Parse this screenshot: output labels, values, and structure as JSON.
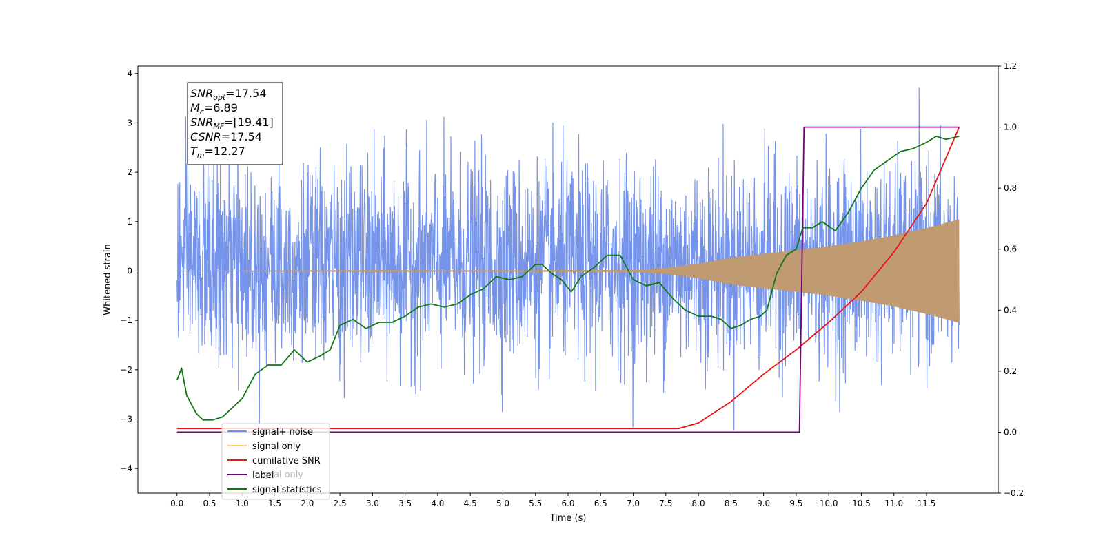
{
  "chart_data": {
    "type": "line",
    "title": "",
    "xlabel": "Time (s)",
    "ylabel": "Whitened strain",
    "ylabel_right": "",
    "xlim": [
      -0.6,
      12.6
    ],
    "ylim": [
      -4.5,
      4.15
    ],
    "ylim_right": [
      -0.2,
      1.2
    ],
    "x_ticks": [
      0.0,
      0.5,
      1.0,
      1.5,
      2.0,
      2.5,
      3.0,
      3.5,
      4.0,
      4.5,
      5.0,
      5.5,
      6.0,
      6.5,
      7.0,
      7.5,
      8.0,
      8.5,
      9.0,
      9.5,
      10.0,
      10.5,
      11.0,
      11.5
    ],
    "x_tick_labels": [
      "0.0",
      "0.5",
      "1.0",
      "1.5",
      "2.0",
      "2.5",
      "3.0",
      "3.5",
      "4.0",
      "4.5",
      "5.0",
      "5.5",
      "6.0",
      "6.5",
      "7.0",
      "7.5",
      "8.0",
      "8.5",
      "9.0",
      "9.5",
      "10.0",
      "10.5",
      "11.0",
      "11.5"
    ],
    "y_ticks": [
      -4,
      -3,
      -2,
      -1,
      0,
      1,
      2,
      3,
      4
    ],
    "y_tick_labels": [
      "−4",
      "−3",
      "−2",
      "−1",
      "0",
      "1",
      "2",
      "3",
      "4"
    ],
    "y_right_ticks": [
      -0.2,
      0.0,
      0.2,
      0.4,
      0.6,
      0.8,
      1.0,
      1.2
    ],
    "y_right_tick_labels": [
      "−0.2",
      "0.0",
      "0.2",
      "0.4",
      "0.6",
      "0.8",
      "1.0",
      "1.2"
    ],
    "grid": false,
    "legend": {
      "placement": "lower-left",
      "entries": [
        {
          "label": "signal+ noise",
          "color": "#6f8ee8"
        },
        {
          "label": "signal only",
          "color": "#ffcc66"
        },
        {
          "label": "cumilative SNR",
          "color": "#ee1111"
        },
        {
          "label": "label",
          "color": "#770077"
        },
        {
          "label": "signal statistics",
          "color": "#117711"
        }
      ],
      "ghost_text": "signal only"
    },
    "annotation": {
      "lines": [
        {
          "base": "SNR",
          "sub": "opt",
          "value": "=17.54"
        },
        {
          "base": "M",
          "sub": "c",
          "value": "=6.89"
        },
        {
          "base": "SNR",
          "sub": "MF",
          "value": "=[19.41]"
        },
        {
          "base": "CSNR",
          "sub": "",
          "value": "=17.54"
        },
        {
          "base": "T",
          "sub": "m",
          "value": "=12.27"
        }
      ]
    },
    "series": [
      {
        "name": "signal+ noise",
        "axis": "left",
        "color": "#6f8ee8",
        "style": "noise",
        "x_range": [
          0.0,
          12.0
        ],
        "envelope_typical": 2.3,
        "peak_values": [
          3.4,
          -3.6,
          3.7,
          -3.5,
          3.75,
          -3.8,
          3.6,
          -3.9
        ]
      },
      {
        "name": "signal only",
        "axis": "left",
        "color": "#ffcc66",
        "style": "chirp",
        "x_range": [
          0.0,
          12.0
        ],
        "amplitude": {
          "x": [
            0.0,
            7.0,
            7.5,
            8.0,
            8.5,
            9.0,
            9.5,
            10.0,
            10.5,
            11.0,
            11.5,
            12.0
          ],
          "y": [
            0.0,
            0.02,
            0.06,
            0.15,
            0.27,
            0.35,
            0.42,
            0.5,
            0.6,
            0.72,
            0.87,
            1.05
          ]
        }
      },
      {
        "name": "cumilative SNR",
        "axis": "right",
        "color": "#ee1111",
        "x": [
          0.0,
          7.7,
          8.0,
          8.5,
          9.0,
          9.5,
          10.0,
          10.5,
          11.0,
          11.5,
          12.0
        ],
        "y": [
          0.012,
          0.012,
          0.03,
          0.1,
          0.19,
          0.27,
          0.36,
          0.46,
          0.59,
          0.75,
          1.0
        ]
      },
      {
        "name": "label",
        "axis": "right",
        "color": "#770077",
        "x": [
          0.0,
          9.55,
          9.62,
          12.0
        ],
        "y": [
          0.0,
          0.0,
          1.0,
          1.0
        ]
      },
      {
        "name": "signal statistics",
        "axis": "right",
        "color": "#117711",
        "x": [
          0.0,
          0.07,
          0.15,
          0.3,
          0.4,
          0.55,
          0.7,
          0.85,
          1.0,
          1.2,
          1.4,
          1.6,
          1.8,
          2.0,
          2.2,
          2.35,
          2.5,
          2.7,
          2.9,
          3.1,
          3.3,
          3.5,
          3.7,
          3.9,
          4.1,
          4.3,
          4.5,
          4.7,
          4.9,
          5.1,
          5.3,
          5.5,
          5.6,
          5.75,
          5.9,
          6.05,
          6.2,
          6.4,
          6.6,
          6.8,
          7.0,
          7.2,
          7.4,
          7.6,
          7.8,
          8.0,
          8.2,
          8.35,
          8.5,
          8.65,
          8.8,
          8.95,
          9.05,
          9.2,
          9.35,
          9.5,
          9.6,
          9.75,
          9.9,
          10.1,
          10.3,
          10.5,
          10.7,
          10.9,
          11.1,
          11.3,
          11.5,
          11.65,
          11.8,
          12.0
        ],
        "y": [
          0.17,
          0.21,
          0.12,
          0.06,
          0.04,
          0.04,
          0.05,
          0.08,
          0.11,
          0.19,
          0.22,
          0.22,
          0.27,
          0.23,
          0.25,
          0.27,
          0.35,
          0.37,
          0.34,
          0.36,
          0.36,
          0.38,
          0.41,
          0.42,
          0.41,
          0.42,
          0.45,
          0.47,
          0.51,
          0.5,
          0.51,
          0.55,
          0.55,
          0.52,
          0.5,
          0.46,
          0.51,
          0.54,
          0.58,
          0.58,
          0.5,
          0.48,
          0.49,
          0.44,
          0.4,
          0.38,
          0.38,
          0.37,
          0.34,
          0.35,
          0.37,
          0.38,
          0.4,
          0.52,
          0.58,
          0.6,
          0.67,
          0.67,
          0.69,
          0.66,
          0.72,
          0.8,
          0.86,
          0.89,
          0.92,
          0.93,
          0.95,
          0.97,
          0.96,
          0.97
        ]
      }
    ]
  }
}
